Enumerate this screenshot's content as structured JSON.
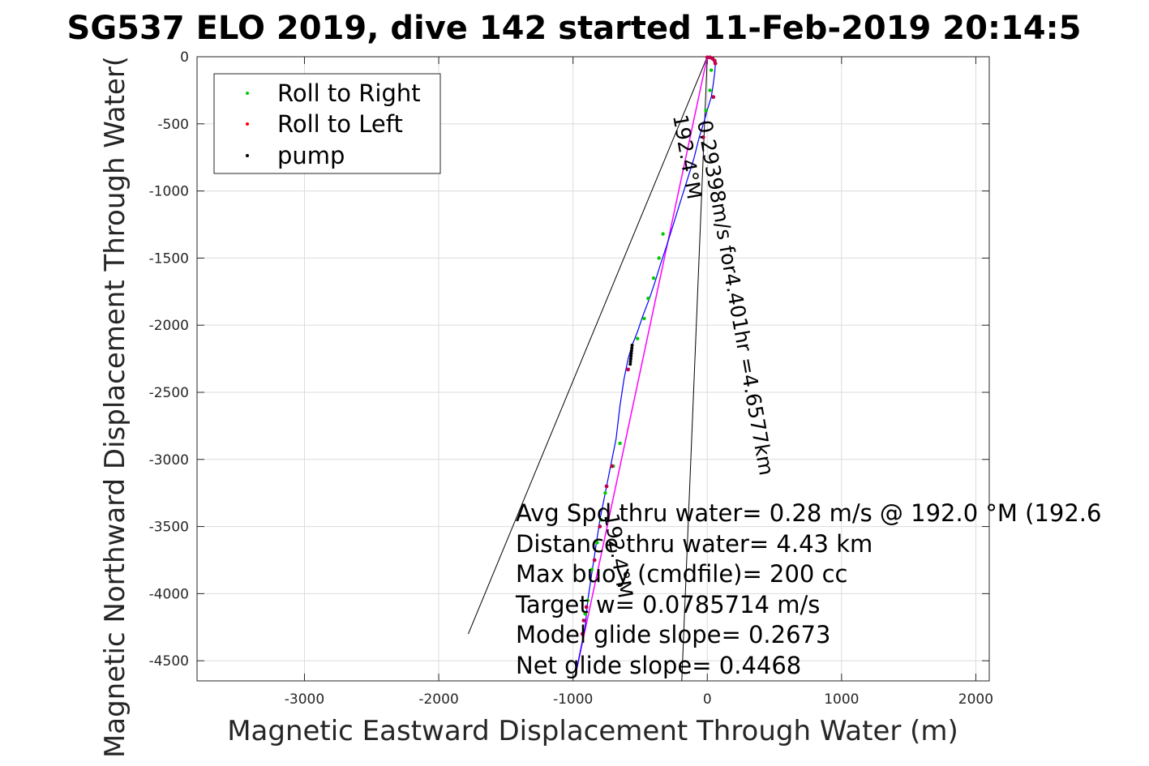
{
  "chart_data": {
    "type": "scatter",
    "title": "SG537 ELO 2019, dive 142 started 11-Feb-2019 20:14:5",
    "xlabel": "Magnetic Eastward Displacement Through Water (m)",
    "ylabel": "Magnetic Northward Displacement Through Water(",
    "xlim": [
      -3800,
      2100
    ],
    "ylim": [
      -4650,
      0
    ],
    "xticks": [
      -3000,
      -2000,
      -1000,
      0,
      1000,
      2000
    ],
    "yticks": [
      0,
      -500,
      -1000,
      -1500,
      -2000,
      -2500,
      -3000,
      -3500,
      -4000,
      -4500
    ],
    "grid": true,
    "legend_position": "top-left",
    "legend": [
      {
        "label": "Roll to Right",
        "color": "#00cc00"
      },
      {
        "label": "Roll to Left",
        "color": "#ff0000"
      },
      {
        "label": "pump",
        "color": "#000000"
      }
    ],
    "track_color": "#0000ff",
    "heading_line_color": "#ff00ff",
    "track": [
      [
        0,
        0
      ],
      [
        40,
        -20
      ],
      [
        60,
        -60
      ],
      [
        55,
        -120
      ],
      [
        45,
        -200
      ],
      [
        30,
        -300
      ],
      [
        5,
        -380
      ],
      [
        -20,
        -470
      ],
      [
        -60,
        -600
      ],
      [
        -100,
        -760
      ],
      [
        -150,
        -920
      ],
      [
        -200,
        -1080
      ],
      [
        -250,
        -1240
      ],
      [
        -300,
        -1400
      ],
      [
        -350,
        -1550
      ],
      [
        -390,
        -1680
      ],
      [
        -430,
        -1800
      ],
      [
        -480,
        -1930
      ],
      [
        -520,
        -2050
      ],
      [
        -560,
        -2150
      ],
      [
        -590,
        -2250
      ],
      [
        -620,
        -2400
      ],
      [
        -650,
        -2600
      ],
      [
        -680,
        -2850
      ],
      [
        -720,
        -3050
      ],
      [
        -760,
        -3250
      ],
      [
        -800,
        -3450
      ],
      [
        -830,
        -3650
      ],
      [
        -860,
        -3850
      ],
      [
        -890,
        -4050
      ],
      [
        -910,
        -4250
      ],
      [
        -950,
        -4450
      ],
      [
        -980,
        -4600
      ]
    ],
    "roll_right": [
      [
        30,
        -100
      ],
      [
        20,
        -250
      ],
      [
        -10,
        -400
      ],
      [
        -330,
        -1320
      ],
      [
        -360,
        -1500
      ],
      [
        -400,
        -1650
      ],
      [
        -440,
        -1800
      ],
      [
        -470,
        -1950
      ],
      [
        -520,
        -2100
      ],
      [
        -650,
        -2880
      ],
      [
        -700,
        -3050
      ],
      [
        -760,
        -3250
      ],
      [
        -790,
        -3450
      ],
      [
        -820,
        -3620
      ],
      [
        -860,
        -3820
      ],
      [
        -890,
        -4050
      ],
      [
        -910,
        -4150
      ]
    ],
    "roll_left": [
      [
        0,
        -5
      ],
      [
        20,
        -5
      ],
      [
        40,
        -15
      ],
      [
        55,
        -30
      ],
      [
        60,
        -50
      ],
      [
        45,
        -300
      ],
      [
        -30,
        -600
      ],
      [
        -590,
        -2330
      ],
      [
        -710,
        -3050
      ],
      [
        -750,
        -3200
      ],
      [
        -800,
        -3500
      ],
      [
        -840,
        -3750
      ],
      [
        -900,
        -4100
      ],
      [
        -920,
        -4200
      ],
      [
        -930,
        -4300
      ]
    ],
    "pump": [
      [
        -560,
        -2150
      ],
      [
        -562,
        -2170
      ],
      [
        -564,
        -2190
      ],
      [
        -566,
        -2210
      ],
      [
        -568,
        -2230
      ],
      [
        -570,
        -2250
      ],
      [
        -572,
        -2270
      ],
      [
        -574,
        -2290
      ]
    ],
    "heading_line": [
      [
        0,
        0
      ],
      [
        -980,
        -4600
      ]
    ],
    "wedge_lines": [
      [
        [
          0,
          0
        ],
        [
          -1780,
          -4300
        ]
      ],
      [
        [
          0,
          0
        ],
        [
          -190,
          -4650
        ]
      ]
    ],
    "line_label_1": "0.29398m/s for4.401hr =4.6577km",
    "line_label_2": "192.4°M",
    "line_label_3": "192.4°M",
    "annotations": [
      "Avg Spd thru water=  0.28 m/s @ 192.0 °M (192.6",
      "Distance thru water=  4.43 km",
      "Max buoy (cmdfile)= 200 cc",
      "Target w= 0.0785714 m/s",
      "Model glide slope= 0.2673",
      "Net glide slope= 0.4468"
    ]
  }
}
